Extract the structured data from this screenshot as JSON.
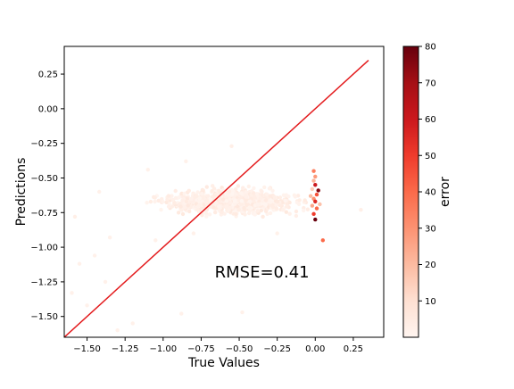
{
  "chart_data": {
    "type": "scatter",
    "title": "",
    "xlabel": "True Values",
    "ylabel": "Predictions",
    "xlim": [
      -1.65,
      0.45
    ],
    "ylim": [
      -1.65,
      0.45
    ],
    "xticks": [
      -1.5,
      -1.25,
      -1.0,
      -0.75,
      -0.5,
      -0.25,
      0.0,
      0.25
    ],
    "xtick_labels": [
      "−1.50",
      "−1.25",
      "−1.00",
      "−0.75",
      "−0.50",
      "−0.25",
      "0.00",
      "0.25"
    ],
    "yticks": [
      0.25,
      0.0,
      -0.25,
      -0.5,
      -0.75,
      -1.0,
      -1.25,
      -1.5
    ],
    "ytick_labels": [
      "0.25",
      "0.00",
      "−0.25",
      "−0.50",
      "−0.75",
      "−1.00",
      "−1.25",
      "−1.50"
    ],
    "annotation": "RMSE=0.41",
    "annotation_pos": [
      -0.35,
      -1.22
    ],
    "reference_line": {
      "x": [
        -1.65,
        0.35
      ],
      "y": [
        -1.65,
        0.35
      ],
      "color": "#e31a1c"
    },
    "colorbar": {
      "label": "error",
      "range": [
        0,
        80
      ],
      "ticks": [
        10,
        20,
        30,
        40,
        50,
        60,
        70,
        80
      ],
      "colormap": [
        "#fff5f0",
        "#fee0d2",
        "#fcbba1",
        "#fc9272",
        "#fb6a4a",
        "#ef3b2c",
        "#cb181d",
        "#a50f15",
        "#67000d"
      ]
    },
    "cloud": {
      "x_center": -0.55,
      "x_spread": 0.32,
      "y_center": -0.67,
      "y_spread": 0.07,
      "count": 900,
      "error_max": 6
    },
    "scattered_points": [
      {
        "x": -1.58,
        "y": -0.78,
        "error": 3
      },
      {
        "x": -1.45,
        "y": -1.06,
        "error": 2
      },
      {
        "x": -1.55,
        "y": -1.12,
        "error": 2
      },
      {
        "x": -1.5,
        "y": -1.42,
        "error": 2
      },
      {
        "x": -1.38,
        "y": -1.25,
        "error": 2
      },
      {
        "x": -1.3,
        "y": -1.6,
        "error": 2
      },
      {
        "x": -1.2,
        "y": -1.55,
        "error": 2
      },
      {
        "x": -1.35,
        "y": -0.93,
        "error": 2
      },
      {
        "x": -1.05,
        "y": -0.95,
        "error": 2
      },
      {
        "x": -0.88,
        "y": -1.48,
        "error": 2
      },
      {
        "x": -0.52,
        "y": -1.2,
        "error": 2
      },
      {
        "x": -0.48,
        "y": -1.47,
        "error": 2
      },
      {
        "x": -1.1,
        "y": -0.44,
        "error": 2
      },
      {
        "x": -0.85,
        "y": -0.38,
        "error": 2
      },
      {
        "x": -0.8,
        "y": -0.9,
        "error": 2
      },
      {
        "x": -0.25,
        "y": -0.9,
        "error": 2
      },
      {
        "x": -0.55,
        "y": -0.27,
        "error": 3
      },
      {
        "x": 0.3,
        "y": -0.73,
        "error": 3
      },
      {
        "x": -1.6,
        "y": -1.33,
        "error": 2
      },
      {
        "x": -1.42,
        "y": -0.6,
        "error": 2
      }
    ],
    "high_error_points": [
      {
        "x": -0.01,
        "y": -0.45,
        "error": 35
      },
      {
        "x": 0.0,
        "y": -0.49,
        "error": 28
      },
      {
        "x": -0.01,
        "y": -0.52,
        "error": 22
      },
      {
        "x": 0.0,
        "y": -0.55,
        "error": 60
      },
      {
        "x": 0.02,
        "y": -0.59,
        "error": 75
      },
      {
        "x": 0.01,
        "y": -0.62,
        "error": 45
      },
      {
        "x": -0.01,
        "y": -0.65,
        "error": 30
      },
      {
        "x": 0.0,
        "y": -0.67,
        "error": 55
      },
      {
        "x": -0.02,
        "y": -0.7,
        "error": 25
      },
      {
        "x": 0.01,
        "y": -0.72,
        "error": 40
      },
      {
        "x": -0.01,
        "y": -0.76,
        "error": 50
      },
      {
        "x": 0.0,
        "y": -0.8,
        "error": 80
      },
      {
        "x": -0.03,
        "y": -0.63,
        "error": 20
      },
      {
        "x": 0.03,
        "y": -0.69,
        "error": 18
      },
      {
        "x": -0.02,
        "y": -0.58,
        "error": 15
      },
      {
        "x": 0.05,
        "y": -0.95,
        "error": 40
      }
    ]
  }
}
